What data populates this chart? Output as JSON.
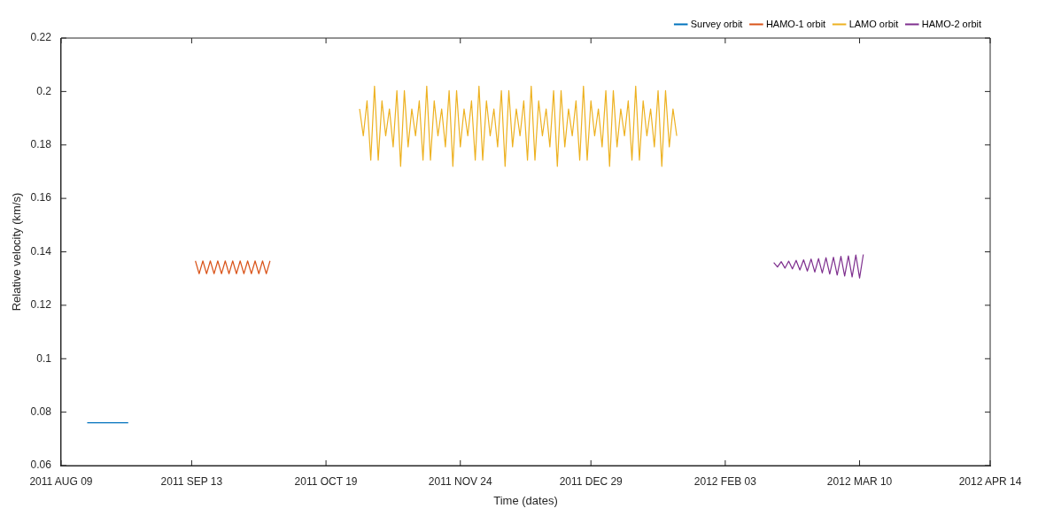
{
  "chart_data": {
    "type": "line",
    "xlabel": "Time (dates)",
    "ylabel": "Relative velocity (km/s)",
    "xlim": [
      "2011-08-09",
      "2012-04-14"
    ],
    "xticks": [
      {
        "value": "2011-08-09",
        "label": "2011 AUG 09"
      },
      {
        "value": "2011-09-13",
        "label": "2011 SEP 13"
      },
      {
        "value": "2011-10-19",
        "label": "2011 OCT 19"
      },
      {
        "value": "2011-11-24",
        "label": "2011 NOV 24"
      },
      {
        "value": "2011-12-29",
        "label": "2011 DEC 29"
      },
      {
        "value": "2012-02-03",
        "label": "2012 FEB 03"
      },
      {
        "value": "2012-03-10",
        "label": "2012 MAR 10"
      },
      {
        "value": "2012-04-14",
        "label": "2012 APR 14"
      }
    ],
    "ylim": [
      0.06,
      0.22
    ],
    "yticks": [
      0.06,
      0.08,
      0.1,
      0.12,
      0.14,
      0.16,
      0.18,
      0.2,
      0.22
    ],
    "grid": false,
    "legend": "top right",
    "marker": "none",
    "line_style": "solid",
    "series": [
      {
        "name": "Survey orbit",
        "color": "#0072bd",
        "x": [
          "2011-08-16",
          "2011-08-27"
        ],
        "values": [
          0.076,
          0.076
        ]
      },
      {
        "name": "HAMO-1 orbit",
        "color": "#d95319",
        "x": [
          "2011-09-14",
          "2011-09-15",
          "2011-09-16",
          "2011-09-17",
          "2011-09-18",
          "2011-09-19",
          "2011-09-20",
          "2011-09-21",
          "2011-09-22",
          "2011-09-23",
          "2011-09-24",
          "2011-09-25",
          "2011-09-26",
          "2011-09-27",
          "2011-09-28",
          "2011-09-29",
          "2011-09-30",
          "2011-10-01",
          "2011-10-02",
          "2011-10-03",
          "2011-10-04"
        ],
        "values": [
          0.1366,
          0.1318,
          0.1366,
          0.1318,
          0.1366,
          0.1318,
          0.1366,
          0.1318,
          0.1366,
          0.1318,
          0.1366,
          0.1318,
          0.1366,
          0.1318,
          0.1366,
          0.1318,
          0.1366,
          0.1318,
          0.1366,
          0.1318,
          0.1366
        ]
      },
      {
        "name": "LAMO orbit",
        "color": "#edb120",
        "x": [
          "2011-10-28",
          "2011-10-29",
          "2011-10-30",
          "2011-10-31",
          "2011-11-01",
          "2011-11-02",
          "2011-11-03",
          "2011-11-04",
          "2011-11-05",
          "2011-11-06",
          "2011-11-07",
          "2011-11-08",
          "2011-11-09",
          "2011-11-10",
          "2011-11-11",
          "2011-11-12",
          "2011-11-13",
          "2011-11-14",
          "2011-11-15",
          "2011-11-16",
          "2011-11-17",
          "2011-11-18",
          "2011-11-19",
          "2011-11-20",
          "2011-11-21",
          "2011-11-22",
          "2011-11-23",
          "2011-11-24",
          "2011-11-25",
          "2011-11-26",
          "2011-11-27",
          "2011-11-28",
          "2011-11-29",
          "2011-11-30",
          "2011-12-01",
          "2011-12-02",
          "2011-12-03",
          "2011-12-04",
          "2011-12-05",
          "2011-12-06",
          "2011-12-07",
          "2011-12-08",
          "2011-12-09",
          "2011-12-10",
          "2011-12-11",
          "2011-12-12",
          "2011-12-13",
          "2011-12-14",
          "2011-12-15",
          "2011-12-16",
          "2011-12-17",
          "2011-12-18",
          "2011-12-19",
          "2011-12-20",
          "2011-12-21",
          "2011-12-22",
          "2011-12-23",
          "2011-12-24",
          "2011-12-25",
          "2011-12-26",
          "2011-12-27",
          "2011-12-28",
          "2011-12-29",
          "2011-12-30",
          "2011-12-31",
          "2012-01-01",
          "2012-01-02",
          "2012-01-03",
          "2012-01-04",
          "2012-01-05",
          "2012-01-06",
          "2012-01-07",
          "2012-01-08",
          "2012-01-09",
          "2012-01-10",
          "2012-01-11",
          "2012-01-12",
          "2012-01-13",
          "2012-01-14",
          "2012-01-15",
          "2012-01-16",
          "2012-01-17",
          "2012-01-18",
          "2012-01-19",
          "2012-01-20",
          "2012-01-21"
        ],
        "values": [
          0.1935,
          0.1834,
          0.1965,
          0.1743,
          0.202,
          0.1743,
          0.1965,
          0.1834,
          0.1935,
          0.1793,
          0.2003,
          0.172,
          0.2003,
          0.1793,
          0.1935,
          0.1834,
          0.1965,
          0.1743,
          0.202,
          0.1743,
          0.1965,
          0.1834,
          0.1935,
          0.1793,
          0.2003,
          0.172,
          0.2003,
          0.1793,
          0.1935,
          0.1834,
          0.1965,
          0.1743,
          0.202,
          0.1743,
          0.1965,
          0.1834,
          0.1935,
          0.1793,
          0.2003,
          0.172,
          0.2003,
          0.1793,
          0.1935,
          0.1834,
          0.1965,
          0.1743,
          0.202,
          0.1743,
          0.1965,
          0.1834,
          0.1935,
          0.1793,
          0.2003,
          0.172,
          0.2003,
          0.1793,
          0.1935,
          0.1834,
          0.1965,
          0.1743,
          0.202,
          0.1743,
          0.1965,
          0.1834,
          0.1935,
          0.1793,
          0.2003,
          0.172,
          0.2003,
          0.1793,
          0.1935,
          0.1834,
          0.1965,
          0.1743,
          0.202,
          0.1743,
          0.1965,
          0.1834,
          0.1935,
          0.1793,
          0.2003,
          0.172,
          0.2003,
          0.1793,
          0.1935,
          0.1834
        ]
      },
      {
        "name": "HAMO-2 orbit",
        "color": "#7e2f8e",
        "x": [
          "2012-02-16",
          "2012-02-17",
          "2012-02-18",
          "2012-02-19",
          "2012-02-20",
          "2012-02-21",
          "2012-02-22",
          "2012-02-23",
          "2012-02-24",
          "2012-02-25",
          "2012-02-26",
          "2012-02-27",
          "2012-02-28",
          "2012-02-29",
          "2012-03-01",
          "2012-03-02",
          "2012-03-03",
          "2012-03-04",
          "2012-03-05",
          "2012-03-06",
          "2012-03-07",
          "2012-03-08",
          "2012-03-09",
          "2012-03-10",
          "2012-03-11"
        ],
        "values": [
          0.136,
          0.1343,
          0.1363,
          0.1339,
          0.1365,
          0.1336,
          0.1368,
          0.1332,
          0.137,
          0.1328,
          0.1373,
          0.1324,
          0.1375,
          0.1321,
          0.1378,
          0.1317,
          0.138,
          0.1313,
          0.1383,
          0.1309,
          0.1385,
          0.1306,
          0.1388,
          0.1302,
          0.139
        ]
      }
    ]
  }
}
